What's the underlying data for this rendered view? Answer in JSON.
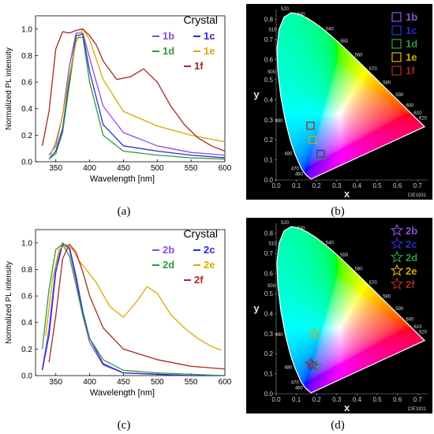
{
  "sublabels": [
    "(a)",
    "(b)",
    "(c)",
    "(d)"
  ],
  "cie_mark": "CIE1931",
  "cie_wavelength_labels": [
    "460",
    "470",
    "480",
    "490",
    "500",
    "510",
    "520",
    "530",
    "540",
    "550",
    "560",
    "570",
    "580",
    "590",
    "600",
    "610",
    "620"
  ],
  "chart_data": [
    {
      "id": "a",
      "type": "line",
      "xlabel": "Wavelength [nm]",
      "ylabel": "Normalized PL intensity",
      "xlim": [
        320,
        600
      ],
      "ylim": [
        0,
        1.1
      ],
      "xticks": [
        350,
        400,
        450,
        500,
        550,
        600
      ],
      "yticks": [
        0.0,
        0.2,
        0.4,
        0.6,
        0.8,
        1.0
      ],
      "legend_title": "Crystal",
      "series": [
        {
          "name": "1b",
          "color": "#8a4fd8",
          "x": [
            340,
            350,
            360,
            370,
            380,
            390,
            400,
            420,
            450,
            500,
            550,
            600
          ],
          "y": [
            0.05,
            0.12,
            0.35,
            0.72,
            0.97,
            0.97,
            0.78,
            0.42,
            0.22,
            0.12,
            0.07,
            0.05
          ]
        },
        {
          "name": "1c",
          "color": "#2b2bd1",
          "x": [
            340,
            350,
            360,
            370,
            380,
            390,
            400,
            420,
            450,
            500,
            550,
            600
          ],
          "y": [
            0.02,
            0.08,
            0.25,
            0.62,
            0.95,
            0.96,
            0.68,
            0.28,
            0.12,
            0.08,
            0.05,
            0.03
          ]
        },
        {
          "name": "1d",
          "color": "#2e9a3c",
          "x": [
            340,
            350,
            360,
            370,
            380,
            390,
            400,
            420,
            450,
            500,
            550,
            600
          ],
          "y": [
            0.02,
            0.06,
            0.22,
            0.58,
            0.93,
            0.94,
            0.6,
            0.2,
            0.08,
            0.05,
            0.03,
            0.02
          ]
        },
        {
          "name": "1e",
          "color": "#d9a800",
          "x": [
            342,
            350,
            360,
            370,
            380,
            390,
            400,
            420,
            450,
            500,
            550,
            600
          ],
          "y": [
            0.05,
            0.15,
            0.35,
            0.65,
            0.9,
            1.0,
            0.92,
            0.62,
            0.38,
            0.27,
            0.2,
            0.15
          ]
        },
        {
          "name": "1f",
          "color": "#a42a22",
          "x": [
            330,
            340,
            350,
            360,
            370,
            380,
            390,
            400,
            410,
            420,
            440,
            460,
            480,
            500,
            520,
            540,
            560,
            580,
            600
          ],
          "y": [
            0.12,
            0.38,
            0.85,
            0.98,
            0.97,
            0.99,
            1.0,
            0.95,
            0.88,
            0.76,
            0.62,
            0.64,
            0.7,
            0.6,
            0.42,
            0.28,
            0.18,
            0.12,
            0.08
          ]
        }
      ]
    },
    {
      "id": "b",
      "type": "scatter",
      "xlabel": "x",
      "ylabel": "y",
      "xlim": [
        0.0,
        0.75
      ],
      "ylim": [
        0.0,
        0.85
      ],
      "xticks": [
        0.0,
        0.1,
        0.2,
        0.3,
        0.4,
        0.5,
        0.6,
        0.7
      ],
      "yticks": [
        0.0,
        0.1,
        0.2,
        0.3,
        0.4,
        0.5,
        0.6,
        0.7,
        0.8
      ],
      "marker": "square",
      "points": [
        {
          "name": "1b",
          "color": "#8a4fd8",
          "x": 0.17,
          "y": 0.27
        },
        {
          "name": "1c",
          "color": "#2b2bd1",
          "x": 0.22,
          "y": 0.13
        },
        {
          "name": "1d",
          "color": "#2e9a3c",
          "x": 0.22,
          "y": 0.13
        },
        {
          "name": "1e",
          "color": "#d9a800",
          "x": 0.18,
          "y": 0.2
        },
        {
          "name": "1f",
          "color": "#a42a22",
          "x": 0.17,
          "y": 0.27
        }
      ]
    },
    {
      "id": "c",
      "type": "line",
      "xlabel": "Wavelength [nm]",
      "ylabel": "Normalized PL intensity",
      "xlim": [
        320,
        600
      ],
      "ylim": [
        0,
        1.1
      ],
      "xticks": [
        350,
        400,
        450,
        500,
        550,
        600
      ],
      "yticks": [
        0.0,
        0.2,
        0.4,
        0.6,
        0.8,
        1.0
      ],
      "legend_title": "Crystal",
      "series": [
        {
          "name": "2b",
          "color": "#8a4fd8",
          "x": [
            330,
            340,
            350,
            360,
            370,
            380,
            390,
            400,
            420,
            450,
            500,
            550,
            600
          ],
          "y": [
            0.05,
            0.35,
            0.82,
            1.0,
            0.95,
            0.72,
            0.45,
            0.25,
            0.08,
            0.02,
            0.01,
            0.0,
            0.0
          ]
        },
        {
          "name": "2c",
          "color": "#2b2bd1",
          "x": [
            330,
            340,
            350,
            360,
            370,
            380,
            390,
            400,
            420,
            450,
            500,
            550,
            600
          ],
          "y": [
            0.04,
            0.3,
            0.78,
            0.99,
            0.97,
            0.75,
            0.48,
            0.28,
            0.09,
            0.02,
            0.01,
            0.0,
            0.0
          ]
        },
        {
          "name": "2d",
          "color": "#2e9a3c",
          "x": [
            330,
            340,
            350,
            360,
            370,
            380,
            390,
            400,
            420,
            450,
            500,
            550,
            600
          ],
          "y": [
            0.2,
            0.65,
            0.95,
            0.99,
            0.9,
            0.68,
            0.45,
            0.28,
            0.12,
            0.04,
            0.02,
            0.01,
            0.0
          ]
        },
        {
          "name": "2e",
          "color": "#d9a800",
          "x": [
            335,
            345,
            355,
            365,
            375,
            385,
            395,
            410,
            430,
            450,
            470,
            485,
            500,
            520,
            540,
            560,
            580,
            595
          ],
          "y": [
            0.3,
            0.72,
            0.95,
            0.99,
            0.95,
            0.86,
            0.8,
            0.7,
            0.52,
            0.44,
            0.56,
            0.67,
            0.62,
            0.46,
            0.36,
            0.28,
            0.22,
            0.19
          ]
        },
        {
          "name": "2f",
          "color": "#a42a22",
          "x": [
            340,
            350,
            360,
            370,
            380,
            390,
            400,
            420,
            450,
            500,
            550,
            600
          ],
          "y": [
            0.1,
            0.45,
            0.88,
            0.99,
            0.93,
            0.78,
            0.6,
            0.36,
            0.2,
            0.12,
            0.07,
            0.05
          ]
        }
      ]
    },
    {
      "id": "d",
      "type": "scatter",
      "xlabel": "x",
      "ylabel": "y",
      "xlim": [
        0.0,
        0.75
      ],
      "ylim": [
        0.0,
        0.85
      ],
      "xticks": [
        0.0,
        0.1,
        0.2,
        0.3,
        0.4,
        0.5,
        0.6,
        0.7
      ],
      "yticks": [
        0.0,
        0.1,
        0.2,
        0.3,
        0.4,
        0.5,
        0.6,
        0.7,
        0.8
      ],
      "marker": "star",
      "points": [
        {
          "name": "2b",
          "color": "#8a4fd8",
          "x": 0.17,
          "y": 0.15
        },
        {
          "name": "2c",
          "color": "#2b2bd1",
          "x": 0.18,
          "y": 0.14
        },
        {
          "name": "2d",
          "color": "#2e9a3c",
          "x": 0.2,
          "y": 0.14
        },
        {
          "name": "2e",
          "color": "#d9a800",
          "x": 0.19,
          "y": 0.3
        },
        {
          "name": "2f",
          "color": "#a42a22",
          "x": 0.17,
          "y": 0.15
        }
      ]
    }
  ]
}
